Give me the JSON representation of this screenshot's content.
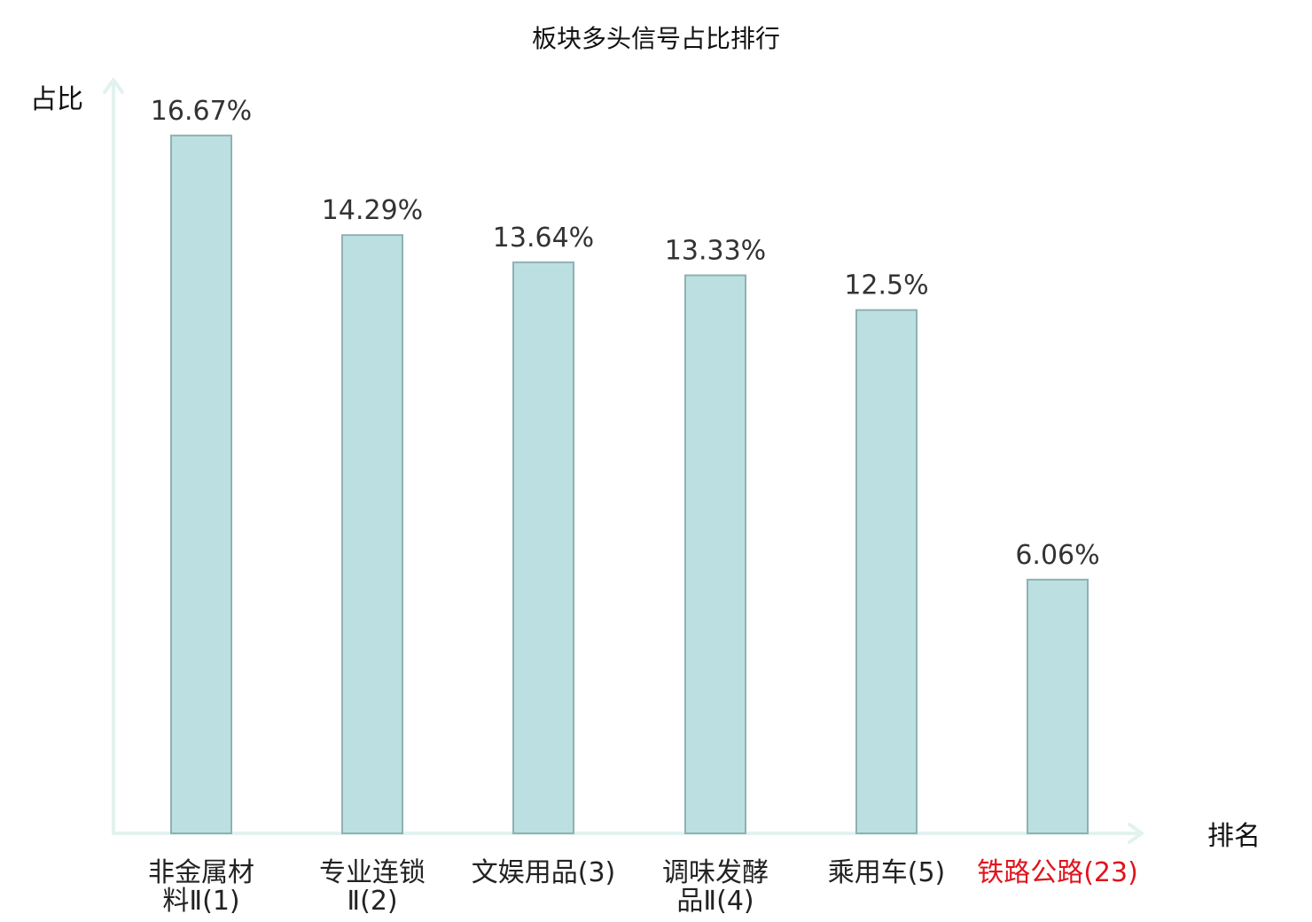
{
  "chart_data": {
    "type": "bar",
    "title": "板块多头信号占比排行",
    "ylabel": "占比",
    "xlabel": "排名",
    "ylim": [
      0,
      18
    ],
    "grid": false,
    "categories": [
      [
        "非金属材",
        "料Ⅱ(1)"
      ],
      [
        "专业连锁",
        "Ⅱ(2)"
      ],
      [
        "文娱用品(3)"
      ],
      [
        "调味发酵",
        "品Ⅱ(4)"
      ],
      [
        "乘用车(5)"
      ],
      [
        "铁路公路(23)"
      ]
    ],
    "values": [
      16.67,
      14.29,
      13.64,
      13.33,
      12.5,
      6.06
    ],
    "value_labels": [
      "16.67%",
      "14.29%",
      "13.64%",
      "13.33%",
      "12.5%",
      "6.06%"
    ],
    "highlight_index": 5,
    "colors": {
      "bar_fill": "#bce0e2",
      "bar_stroke": "#8fb1b3",
      "axis": "#e2f2ef",
      "highlight_text": "#e0141e"
    }
  }
}
